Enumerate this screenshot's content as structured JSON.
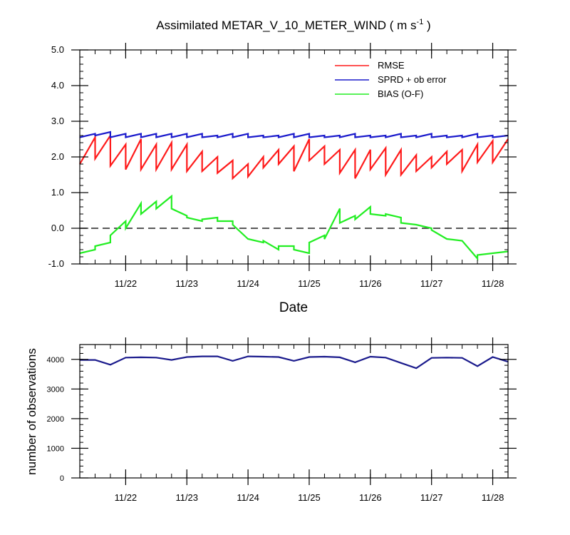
{
  "chart_data": [
    {
      "type": "line",
      "title": "Assimilated METAR_V_10_METER_WIND ( m s",
      "title_unit_sup": "-1",
      "title_close": " )",
      "xlabel": "Date",
      "ylabel": "",
      "ylim": [
        -1.0,
        5.0
      ],
      "xlim": [
        0,
        28
      ],
      "ytick_labels": [
        "-1.0",
        "0.0",
        "1.0",
        "2.0",
        "3.0",
        "4.0",
        "5.0"
      ],
      "ytick_values": [
        -1,
        0,
        1,
        2,
        3,
        4,
        5
      ],
      "xtick_labels": [
        "11/22",
        "11/23",
        "11/24",
        "11/25",
        "11/26",
        "11/27",
        "11/28"
      ],
      "xtick_values": [
        3,
        7,
        11,
        15,
        19,
        23,
        27
      ],
      "zero_line": 0,
      "legend_position": "top-right",
      "series": [
        {
          "name": "RMSE",
          "color": "#ff1a1a",
          "x": [
            0,
            1,
            1,
            2,
            2,
            3,
            3,
            4,
            4,
            5,
            5,
            6,
            6,
            7,
            7,
            8,
            8,
            9,
            9,
            10,
            10,
            11,
            11,
            12,
            12,
            13,
            13,
            14,
            14,
            15,
            15,
            16,
            16,
            17,
            17,
            18,
            18,
            19,
            19,
            20,
            20,
            21,
            21,
            22,
            22,
            23,
            23,
            24,
            24,
            25,
            25,
            26,
            26,
            27,
            27,
            28
          ],
          "values": [
            1.8,
            2.55,
            1.95,
            2.6,
            1.75,
            2.35,
            1.65,
            2.5,
            1.65,
            2.35,
            1.65,
            2.4,
            1.65,
            2.35,
            1.6,
            2.15,
            1.6,
            2.0,
            1.55,
            1.9,
            1.4,
            1.8,
            1.45,
            2.0,
            1.7,
            2.2,
            1.8,
            2.3,
            1.6,
            2.5,
            1.9,
            2.3,
            1.8,
            2.2,
            1.55,
            2.2,
            1.4,
            2.2,
            1.65,
            2.25,
            1.5,
            2.2,
            1.5,
            2.05,
            1.6,
            2.0,
            1.7,
            2.15,
            1.8,
            2.2,
            1.6,
            2.35,
            1.85,
            2.45,
            1.85,
            2.5
          ]
        },
        {
          "name": "SPRD + ob error",
          "color": "#1a1acc",
          "x": [
            0,
            1,
            1,
            2,
            2,
            3,
            3,
            4,
            4,
            5,
            5,
            6,
            6,
            7,
            7,
            8,
            8,
            9,
            9,
            10,
            10,
            11,
            11,
            12,
            12,
            13,
            13,
            14,
            14,
            15,
            15,
            16,
            16,
            17,
            17,
            18,
            18,
            19,
            19,
            20,
            20,
            21,
            21,
            22,
            22,
            23,
            23,
            24,
            24,
            25,
            25,
            26,
            26,
            27,
            27,
            28
          ],
          "values": [
            2.55,
            2.65,
            2.6,
            2.7,
            2.55,
            2.65,
            2.55,
            2.65,
            2.55,
            2.65,
            2.55,
            2.65,
            2.55,
            2.65,
            2.55,
            2.65,
            2.55,
            2.6,
            2.55,
            2.65,
            2.55,
            2.65,
            2.55,
            2.6,
            2.55,
            2.6,
            2.55,
            2.65,
            2.55,
            2.65,
            2.55,
            2.6,
            2.55,
            2.6,
            2.55,
            2.65,
            2.55,
            2.6,
            2.55,
            2.6,
            2.55,
            2.65,
            2.55,
            2.6,
            2.55,
            2.65,
            2.55,
            2.6,
            2.55,
            2.6,
            2.55,
            2.65,
            2.55,
            2.6,
            2.55,
            2.6
          ]
        },
        {
          "name": "BIAS (O-F)",
          "color": "#22ee22",
          "x": [
            0,
            1,
            1,
            2,
            2,
            3,
            3,
            4,
            4,
            5,
            5,
            6,
            6,
            7,
            7,
            8,
            8,
            9,
            9,
            10,
            10,
            11,
            11,
            12,
            12,
            13,
            13,
            14,
            14,
            15,
            15,
            16,
            16,
            17,
            17,
            18,
            18,
            19,
            19,
            20,
            20,
            21,
            21,
            22,
            22,
            23,
            23,
            24,
            24,
            25,
            25,
            26,
            26,
            27,
            27,
            28
          ],
          "values": [
            -0.7,
            -0.6,
            -0.5,
            -0.4,
            -0.2,
            0.2,
            0.0,
            0.7,
            0.4,
            0.75,
            0.55,
            0.9,
            0.55,
            0.35,
            0.3,
            0.2,
            0.25,
            0.3,
            0.2,
            0.2,
            0.1,
            -0.3,
            -0.3,
            -0.4,
            -0.35,
            -0.6,
            -0.5,
            -0.5,
            -0.6,
            -0.7,
            -0.4,
            -0.2,
            -0.3,
            0.55,
            0.15,
            0.35,
            0.25,
            0.6,
            0.4,
            0.35,
            0.4,
            0.3,
            0.15,
            0.1,
            0.1,
            0.0,
            -0.05,
            -0.3,
            -0.3,
            -0.35,
            -0.35,
            -0.85,
            -0.75,
            -0.7,
            -0.7,
            -0.65
          ]
        }
      ]
    },
    {
      "type": "line",
      "title": "",
      "xlabel": "",
      "ylabel": "number of observations",
      "ylim": [
        0,
        4500
      ],
      "xlim": [
        0,
        28
      ],
      "ytick_labels": [
        "0",
        "1000",
        "2000",
        "3000",
        "4000"
      ],
      "ytick_values": [
        0,
        1000,
        2000,
        3000,
        4000
      ],
      "xtick_labels": [
        "11/22",
        "11/23",
        "11/24",
        "11/25",
        "11/26",
        "11/27",
        "11/28"
      ],
      "xtick_values": [
        3,
        7,
        11,
        15,
        19,
        23,
        27
      ],
      "series": [
        {
          "name": "number of observations",
          "color": "#1a1a8c",
          "x": [
            0,
            1,
            2,
            3,
            4,
            5,
            6,
            7,
            8,
            9,
            10,
            11,
            12,
            13,
            14,
            15,
            16,
            17,
            18,
            19,
            20,
            21,
            22,
            23,
            24,
            25,
            26,
            27,
            28
          ],
          "values": [
            3980,
            3980,
            3820,
            4060,
            4070,
            4060,
            3980,
            4080,
            4100,
            4100,
            3950,
            4100,
            4090,
            4080,
            3950,
            4080,
            4090,
            4070,
            3900,
            4090,
            4060,
            3880,
            3700,
            4050,
            4060,
            4050,
            3770,
            4080,
            3920
          ]
        }
      ]
    }
  ]
}
